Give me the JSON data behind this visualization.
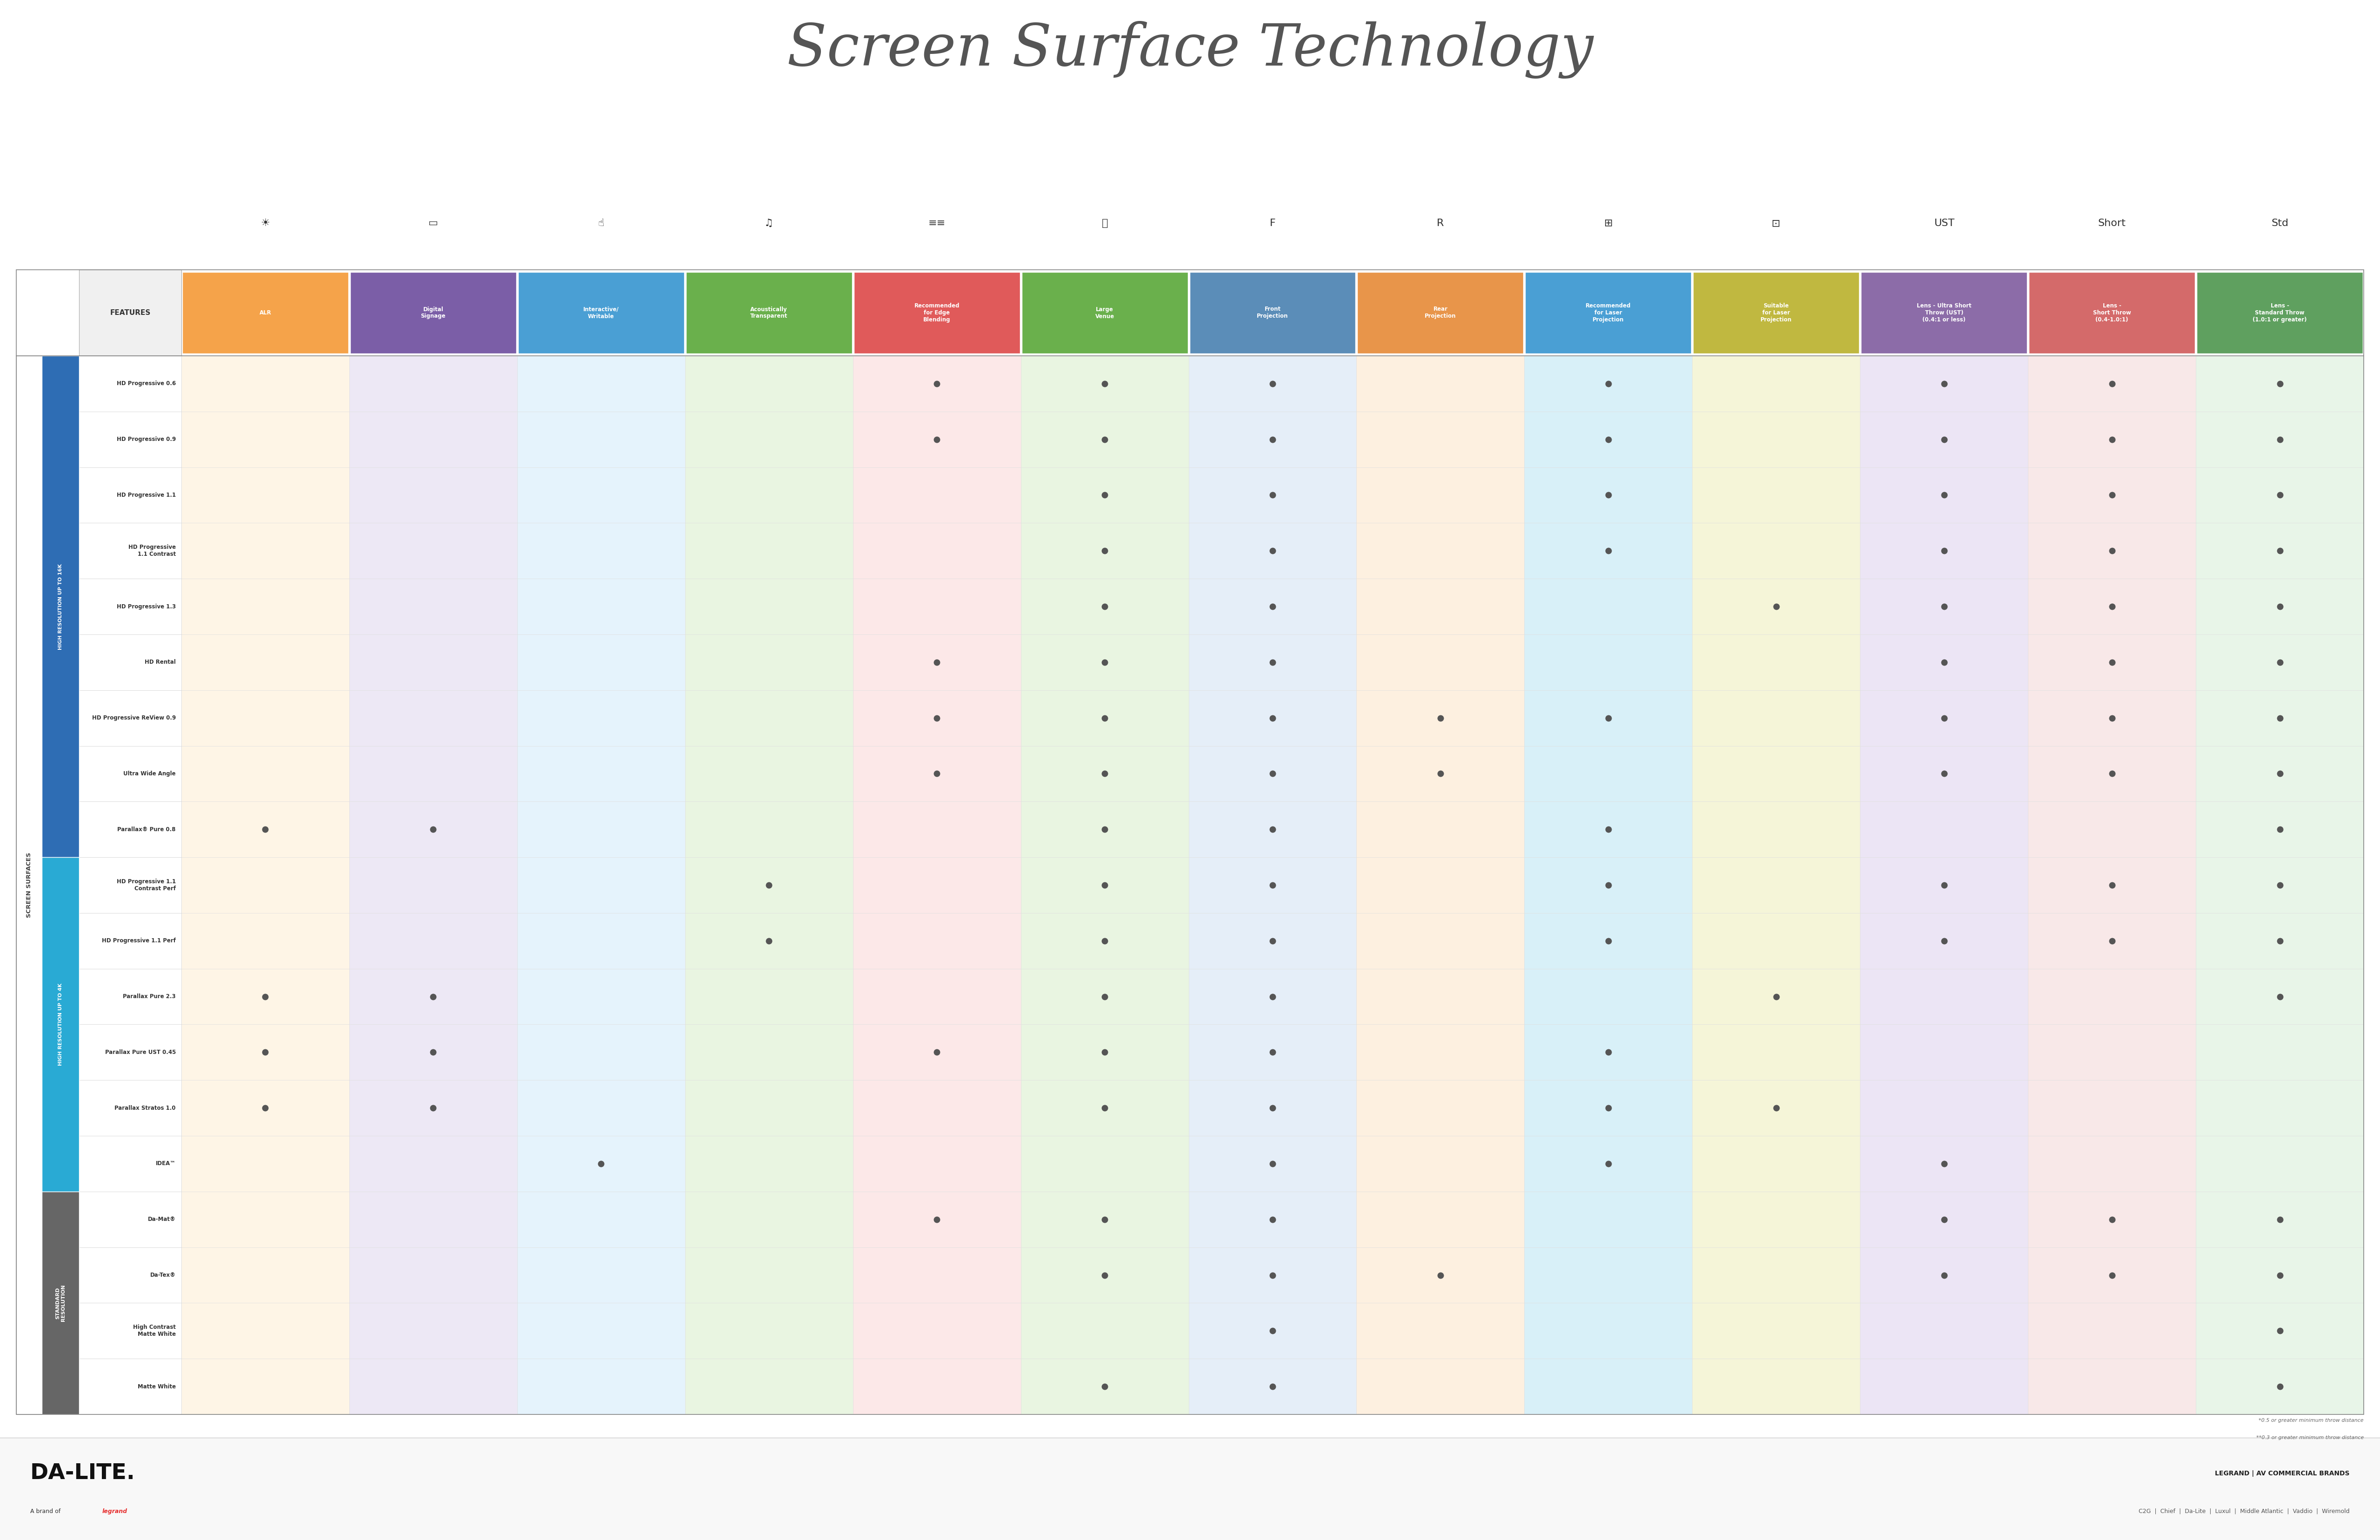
{
  "title": "Screen Surface Technology",
  "title_color": "#555555",
  "background_color": "#ffffff",
  "columns": [
    {
      "label": "ALR",
      "color": "#f5a34a",
      "text_color": "#ffffff",
      "row_bg": "#fef5e6"
    },
    {
      "label": "Digital\nSignage",
      "color": "#7b5ea7",
      "text_color": "#ffffff",
      "row_bg": "#ede8f5"
    },
    {
      "label": "Interactive/\nWritable",
      "color": "#4a9fd4",
      "text_color": "#ffffff",
      "row_bg": "#e5f3fc"
    },
    {
      "label": "Acoustically\nTransparent",
      "color": "#6ab04c",
      "text_color": "#ffffff",
      "row_bg": "#e9f5e1"
    },
    {
      "label": "Recommended\nfor Edge\nBlending",
      "color": "#e05a5a",
      "text_color": "#ffffff",
      "row_bg": "#fce8e8"
    },
    {
      "label": "Large\nVenue",
      "color": "#6ab04c",
      "text_color": "#ffffff",
      "row_bg": "#e9f5e1"
    },
    {
      "label": "Front\nProjection",
      "color": "#5b8db8",
      "text_color": "#ffffff",
      "row_bg": "#e5eef8"
    },
    {
      "label": "Rear\nProjection",
      "color": "#e8954a",
      "text_color": "#ffffff",
      "row_bg": "#fdf0e0"
    },
    {
      "label": "Recommended\nfor Laser\nProjection",
      "color": "#4a9fd4",
      "text_color": "#ffffff",
      "row_bg": "#d8f0f8"
    },
    {
      "label": "Suitable\nfor Laser\nProjection",
      "color": "#c0b840",
      "text_color": "#ffffff",
      "row_bg": "#f5f5d8"
    },
    {
      "label": "Lens - Ultra Short\nThrow (UST)\n(0.4:1 or less)",
      "color": "#8c6ca8",
      "text_color": "#ffffff",
      "row_bg": "#ece5f5"
    },
    {
      "label": "Lens -\nShort Throw\n(0.4-1.0:1)",
      "color": "#d46a6a",
      "text_color": "#ffffff",
      "row_bg": "#f8e8e8"
    },
    {
      "label": "Lens -\nStandard Throw\n(1.0:1 or greater)",
      "color": "#5fa05f",
      "text_color": "#ffffff",
      "row_bg": "#e8f5e8"
    }
  ],
  "row_groups": [
    {
      "group_label": "HIGH RESOLUTION UP TO 16K",
      "group_color": "#2e6db4",
      "rows": [
        {
          "label": "HD Progressive 0.6",
          "dots": [
            false,
            false,
            false,
            false,
            true,
            true,
            true,
            false,
            true,
            false,
            true,
            true,
            true
          ]
        },
        {
          "label": "HD Progressive 0.9",
          "dots": [
            false,
            false,
            false,
            false,
            true,
            true,
            true,
            false,
            true,
            false,
            true,
            true,
            true
          ]
        },
        {
          "label": "HD Progressive 1.1",
          "dots": [
            false,
            false,
            false,
            false,
            false,
            true,
            true,
            false,
            true,
            false,
            true,
            true,
            true
          ]
        },
        {
          "label": "HD Progressive\n1.1 Contrast",
          "dots": [
            false,
            false,
            false,
            false,
            false,
            true,
            true,
            false,
            true,
            false,
            true,
            true,
            true
          ]
        },
        {
          "label": "HD Progressive 1.3",
          "dots": [
            false,
            false,
            false,
            false,
            false,
            true,
            true,
            false,
            false,
            true,
            true,
            true,
            true
          ]
        },
        {
          "label": "HD Rental",
          "dots": [
            false,
            false,
            false,
            false,
            true,
            true,
            true,
            false,
            false,
            false,
            true,
            true,
            true
          ]
        },
        {
          "label": "HD Progressive ReView 0.9",
          "dots": [
            false,
            false,
            false,
            false,
            true,
            true,
            true,
            true,
            true,
            false,
            true,
            true,
            true
          ]
        },
        {
          "label": "Ultra Wide Angle",
          "dots": [
            false,
            false,
            false,
            false,
            true,
            true,
            true,
            true,
            false,
            false,
            true,
            true,
            true
          ]
        },
        {
          "label": "Parallax® Pure 0.8",
          "dots": [
            true,
            true,
            false,
            false,
            false,
            true,
            true,
            false,
            true,
            false,
            false,
            false,
            true
          ]
        }
      ]
    },
    {
      "group_label": "HIGH RESOLUTION UP TO 4K",
      "group_color": "#29aad4",
      "rows": [
        {
          "label": "HD Progressive 1.1\nContrast Perf",
          "dots": [
            false,
            false,
            false,
            true,
            false,
            true,
            true,
            false,
            true,
            false,
            true,
            true,
            true
          ]
        },
        {
          "label": "HD Progressive 1.1 Perf",
          "dots": [
            false,
            false,
            false,
            true,
            false,
            true,
            true,
            false,
            true,
            false,
            true,
            true,
            true
          ]
        },
        {
          "label": "Parallax Pure 2.3",
          "dots": [
            true,
            true,
            false,
            false,
            false,
            true,
            true,
            false,
            false,
            true,
            false,
            false,
            true
          ]
        },
        {
          "label": "Parallax Pure UST 0.45",
          "dots": [
            true,
            true,
            false,
            false,
            true,
            true,
            true,
            false,
            true,
            false,
            false,
            false,
            false
          ]
        },
        {
          "label": "Parallax Stratos 1.0",
          "dots": [
            true,
            true,
            false,
            false,
            false,
            true,
            true,
            false,
            true,
            true,
            false,
            false,
            false
          ]
        },
        {
          "label": "IDEA™",
          "dots": [
            false,
            false,
            true,
            false,
            false,
            false,
            true,
            false,
            true,
            false,
            true,
            false,
            false
          ]
        }
      ]
    },
    {
      "group_label": "STANDARD\nRESOLUTION",
      "group_color": "#666666",
      "rows": [
        {
          "label": "Da-Mat®",
          "dots": [
            false,
            false,
            false,
            false,
            true,
            true,
            true,
            false,
            false,
            false,
            true,
            true,
            true
          ]
        },
        {
          "label": "Da-Tex®",
          "dots": [
            false,
            false,
            false,
            false,
            false,
            true,
            true,
            true,
            false,
            false,
            true,
            true,
            true
          ]
        },
        {
          "label": "High Contrast\nMatte White",
          "dots": [
            false,
            false,
            false,
            false,
            false,
            false,
            true,
            false,
            false,
            false,
            false,
            false,
            true
          ]
        },
        {
          "label": "Matte White",
          "dots": [
            false,
            false,
            false,
            false,
            false,
            true,
            true,
            false,
            false,
            false,
            false,
            false,
            true
          ]
        }
      ]
    }
  ],
  "dot_color": "#555555",
  "footnote1": "*0.5 or greater minimum throw distance",
  "footnote2": "**0.3 or greater minimum throw distance",
  "brand_text": "LEGRAND | AV COMMERCIAL BRANDS",
  "brand_sub": "C2G  |  Chief  |  Da-Lite  |  Luxul  |  Middle Atlantic  |  Vaddio  |  Wiremold"
}
